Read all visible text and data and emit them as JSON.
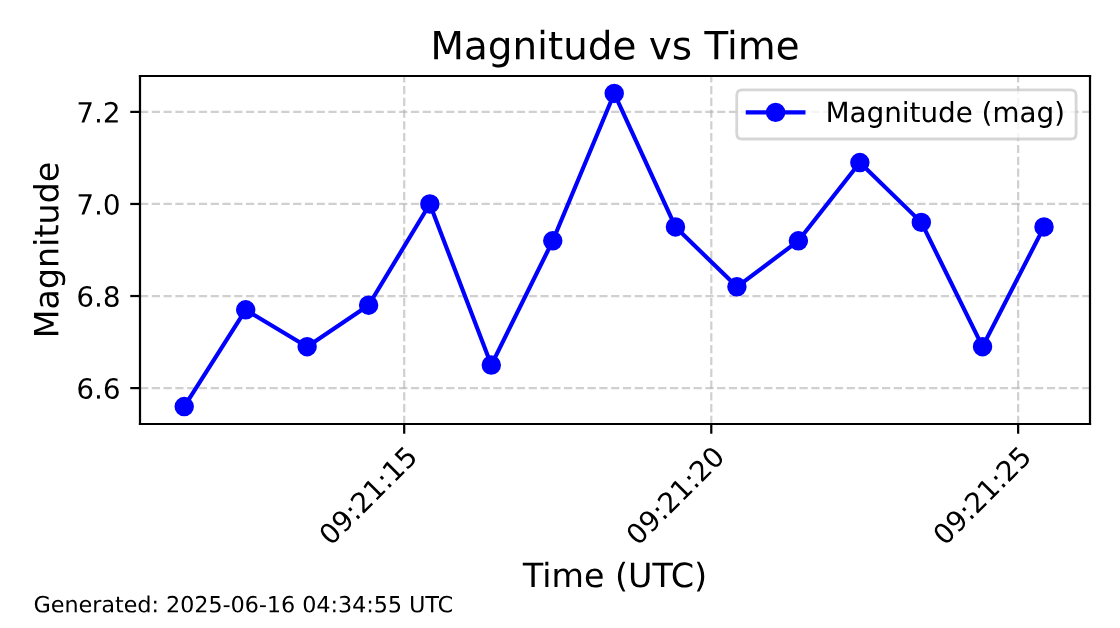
{
  "chart_data": {
    "type": "line",
    "title": "Magnitude vs Time",
    "xlabel": "Time (UTC)",
    "ylabel": "Magnitude",
    "x": [
      9.353172,
      9.35345,
      9.353728,
      9.354006,
      9.354283,
      9.354561,
      9.354839,
      9.355117,
      9.355394,
      9.355672,
      9.35595,
      9.356228,
      9.356506,
      9.356783,
      9.357061
    ],
    "series": [
      {
        "name": "Magnitude (mag)",
        "color": "#0000ff",
        "values": [
          6.56,
          6.77,
          6.69,
          6.78,
          7.0,
          6.65,
          6.92,
          7.24,
          6.95,
          6.82,
          6.92,
          7.09,
          6.96,
          6.69,
          6.95
        ]
      }
    ],
    "xlim": [
      9.352972,
      9.357269
    ],
    "xticks": [
      {
        "value": 9.354167,
        "label": "09:21:15"
      },
      {
        "value": 9.355556,
        "label": "09:21:20"
      },
      {
        "value": 9.356944,
        "label": "09:21:25"
      }
    ],
    "ylim": [
      6.522,
      7.278
    ],
    "yticks": [
      6.6,
      6.8,
      {
        "value": 7,
        "label": "7.0"
      },
      7.2
    ],
    "grid": true,
    "legend": "top right",
    "marker": "circle",
    "line_style": "solid",
    "annotations": [
      "Generated: 2025-06-16 04:34:55 UTC"
    ]
  }
}
